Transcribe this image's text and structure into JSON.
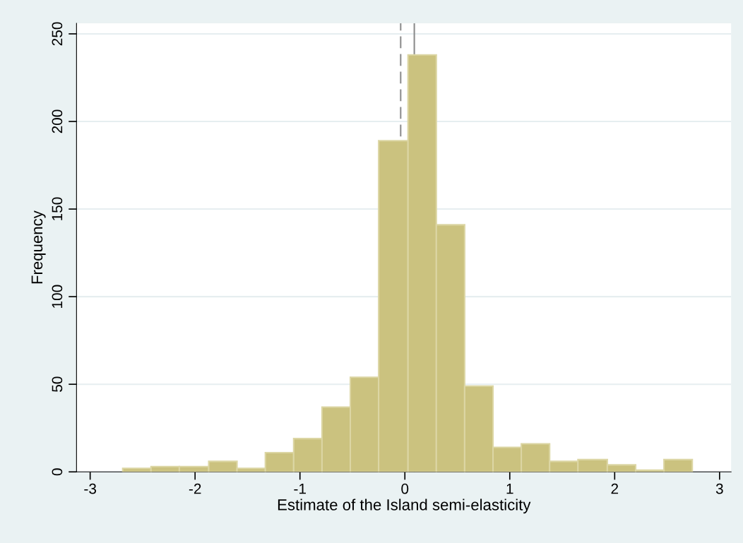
{
  "chart_data": {
    "type": "histogram",
    "xlabel": "Estimate of the Island semi-elasticity",
    "ylabel": "Frequency",
    "bins": [
      -2.69,
      -2.42,
      -2.15,
      -1.87,
      -1.6,
      -1.33,
      -1.06,
      -0.79,
      -0.52,
      -0.25,
      0.03,
      0.3,
      0.57,
      0.84,
      1.11,
      1.38,
      1.65,
      1.93,
      2.2,
      2.47,
      2.74
    ],
    "values": [
      2,
      3,
      3,
      6,
      2,
      11,
      19,
      37,
      54,
      189,
      238,
      141,
      49,
      14,
      16,
      6,
      7,
      4,
      1,
      7
    ],
    "color": "#cbc27f",
    "xlim": [
      -3.13,
      3.11
    ],
    "ylim": [
      0,
      256
    ],
    "xticks": [
      -3,
      -2,
      -1,
      0,
      1,
      2,
      3
    ],
    "yticks": [
      0,
      50,
      100,
      150,
      200,
      250
    ],
    "grid": "y",
    "ref_lines": [
      {
        "axis": "x",
        "value": -0.04,
        "line_style": "dashed",
        "color": "#8c8c8c"
      },
      {
        "axis": "x",
        "value": 0.09,
        "line_style": "solid",
        "color": "#8c8c8c"
      }
    ]
  }
}
